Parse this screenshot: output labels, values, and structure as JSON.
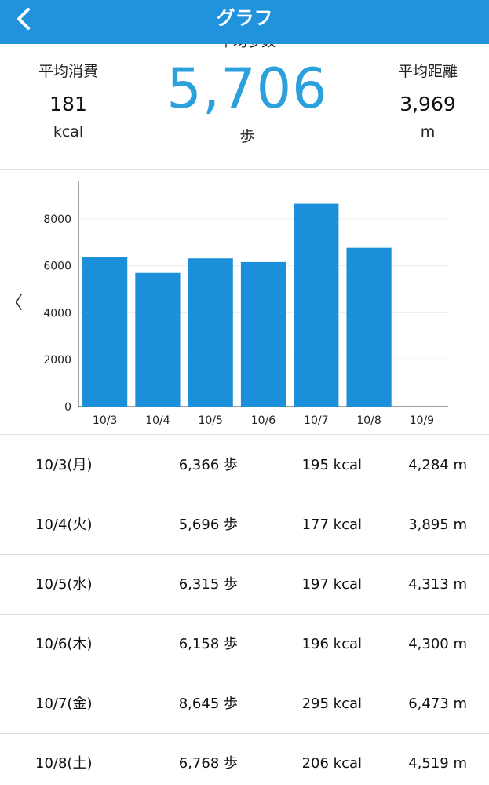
{
  "header": {
    "title": "グラフ",
    "back_icon": "chevron-left-icon",
    "background": "#2192dc"
  },
  "stats": {
    "calories": {
      "label": "平均消費",
      "value": "181",
      "unit": "kcal"
    },
    "steps": {
      "label": "平均歩数",
      "value": "5,706",
      "unit": "歩",
      "color": "#2aa1dd"
    },
    "distance": {
      "label": "平均距離",
      "value": "3,969",
      "unit": "m"
    }
  },
  "chart": {
    "prev_icon": "chevron-left-icon",
    "prev_glyph": "〈"
  },
  "chart_data": {
    "type": "bar",
    "categories": [
      "10/3",
      "10/4",
      "10/5",
      "10/6",
      "10/7",
      "10/8",
      "10/9"
    ],
    "values": [
      6366,
      5696,
      6315,
      6158,
      8645,
      6768,
      null
    ],
    "ylim": [
      0,
      9500
    ],
    "yticks": [
      0,
      2000,
      4000,
      6000,
      8000
    ],
    "grid": true,
    "bar_color": "#1b8fda",
    "title": "",
    "xlabel": "",
    "ylabel": ""
  },
  "rows": [
    {
      "date": "10/3(月)",
      "steps": "6,366 歩",
      "kcal": "195 kcal",
      "dist": "4,284 m"
    },
    {
      "date": "10/4(火)",
      "steps": "5,696 歩",
      "kcal": "177 kcal",
      "dist": "3,895 m"
    },
    {
      "date": "10/5(水)",
      "steps": "6,315 歩",
      "kcal": "197 kcal",
      "dist": "4,313 m"
    },
    {
      "date": "10/6(木)",
      "steps": "6,158 歩",
      "kcal": "196 kcal",
      "dist": "4,300 m"
    },
    {
      "date": "10/7(金)",
      "steps": "8,645 歩",
      "kcal": "295 kcal",
      "dist": "6,473 m"
    },
    {
      "date": "10/8(土)",
      "steps": "6,768 歩",
      "kcal": "206 kcal",
      "dist": "4,519 m"
    }
  ]
}
